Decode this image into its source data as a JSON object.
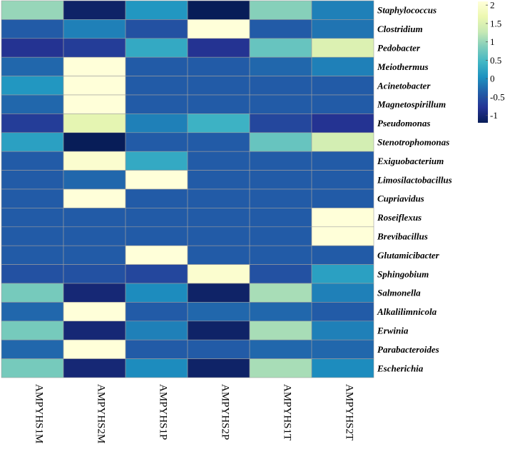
{
  "chart_data": {
    "type": "heatmap",
    "title": "",
    "columns": [
      "AMPYHS1M",
      "AMPYHS2M",
      "AMPYHS1P",
      "AMPYHS2P",
      "AMPYHS1T",
      "AMPYHS2T"
    ],
    "rows": [
      "Staphylococcus",
      "Clostridium",
      "Pedobacter",
      "Meiothermus",
      "Acinetobacter",
      "Magnetospirillum",
      "Pseudomonas",
      "Stenotrophomonas",
      "Exiguobacterium",
      "Limosilactobacillus",
      "Cupriavidus",
      "Roseiflexus",
      "Brevibacillus",
      "Glutamicibacter",
      "Sphingobium",
      "Salmonella",
      "Alkalilimnicola",
      "Erwinia",
      "Parabacteroides",
      "Escherichia"
    ],
    "values": [
      [
        1.0,
        -1.1,
        0.1,
        -1.2,
        0.9,
        -0.1
      ],
      [
        -0.4,
        -0.1,
        -0.5,
        2.1,
        -0.4,
        -0.2
      ],
      [
        -0.8,
        -0.7,
        0.3,
        -0.8,
        0.7,
        1.5
      ],
      [
        -0.3,
        2.1,
        -0.4,
        -0.4,
        -0.3,
        -0.1
      ],
      [
        0.1,
        2.1,
        -0.4,
        -0.4,
        -0.4,
        -0.4
      ],
      [
        -0.3,
        2.1,
        -0.4,
        -0.4,
        -0.4,
        -0.4
      ],
      [
        -0.7,
        1.6,
        -0.1,
        0.4,
        -0.6,
        -0.8
      ],
      [
        0.2,
        -1.3,
        -0.4,
        -0.4,
        0.7,
        1.4
      ],
      [
        -0.4,
        2.0,
        0.3,
        -0.4,
        -0.4,
        -0.4
      ],
      [
        -0.4,
        -0.3,
        2.1,
        -0.4,
        -0.4,
        -0.4
      ],
      [
        -0.4,
        2.1,
        -0.4,
        -0.4,
        -0.4,
        -0.4
      ],
      [
        -0.4,
        -0.4,
        -0.4,
        -0.4,
        -0.4,
        2.1
      ],
      [
        -0.4,
        -0.4,
        -0.4,
        -0.4,
        -0.4,
        2.1
      ],
      [
        -0.4,
        -0.4,
        2.1,
        -0.4,
        -0.4,
        -0.4
      ],
      [
        -0.5,
        -0.5,
        -0.6,
        2.0,
        -0.5,
        0.2
      ],
      [
        0.8,
        -1.0,
        0.0,
        -1.1,
        1.1,
        -0.1
      ],
      [
        -0.3,
        2.1,
        -0.4,
        -0.3,
        -0.3,
        -0.4
      ],
      [
        0.8,
        -1.0,
        -0.1,
        -1.1,
        1.1,
        -0.1
      ],
      [
        -0.3,
        2.1,
        -0.4,
        -0.4,
        -0.3,
        -0.3
      ],
      [
        0.8,
        -1.0,
        0.0,
        -1.1,
        1.1,
        0.0
      ]
    ],
    "colorbar": {
      "range": [
        -1.2,
        2.1
      ],
      "ticks": [
        2,
        1.5,
        1,
        0.5,
        0,
        -0.5,
        -1
      ],
      "tick_labels": [
        "2",
        "1.5",
        "1",
        "0.5",
        "0",
        "-0.5",
        "-1"
      ],
      "colors": [
        "#081d58",
        "#253494",
        "#225ea8",
        "#1d91c0",
        "#41b6c4",
        "#7fcdbb",
        "#c7e9b4",
        "#edf8b1",
        "#ffffd9"
      ]
    },
    "legend_position": "top-right",
    "xlabel": "",
    "ylabel": ""
  }
}
